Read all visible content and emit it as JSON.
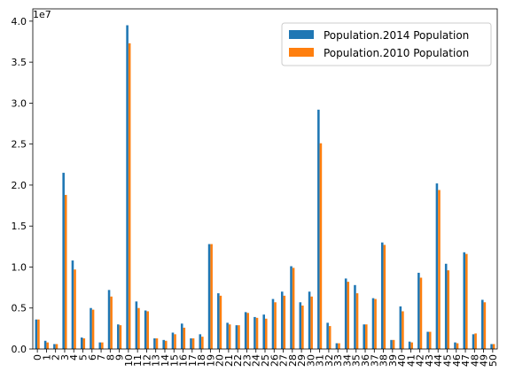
{
  "chart_data": {
    "type": "bar",
    "offset_label": "1e7",
    "categories": [
      "0",
      "1",
      "2",
      "3",
      "4",
      "5",
      "6",
      "7",
      "8",
      "9",
      "10",
      "11",
      "12",
      "13",
      "14",
      "15",
      "16",
      "17",
      "18",
      "19",
      "20",
      "21",
      "22",
      "23",
      "24",
      "25",
      "26",
      "27",
      "28",
      "29",
      "30",
      "31",
      "32",
      "33",
      "34",
      "35",
      "36",
      "37",
      "38",
      "39",
      "40",
      "41",
      "42",
      "43",
      "44",
      "45",
      "46",
      "47",
      "48",
      "49",
      "50"
    ],
    "ylim": [
      0,
      4.15
    ],
    "yticks": [
      0.0,
      0.5,
      1.0,
      1.5,
      2.0,
      2.5,
      3.0,
      3.5,
      4.0
    ],
    "ytick_labels": [
      "0.0",
      "0.5",
      "1.0",
      "1.5",
      "2.0",
      "2.5",
      "3.0",
      "3.5",
      "4.0"
    ],
    "legend_position": "top-right",
    "series": [
      {
        "name": "Population.2014 Population",
        "color": "#1f77b4",
        "values": [
          0.36,
          0.1,
          0.06,
          2.15,
          1.08,
          0.14,
          0.5,
          0.08,
          0.72,
          0.3,
          3.95,
          0.58,
          0.47,
          0.13,
          0.11,
          0.2,
          0.31,
          0.13,
          0.18,
          1.28,
          0.68,
          0.32,
          0.29,
          0.45,
          0.39,
          0.42,
          0.61,
          0.7,
          1.01,
          0.57,
          0.7,
          2.92,
          0.32,
          0.07,
          0.86,
          0.78,
          0.3,
          0.62,
          1.3,
          0.11,
          0.52,
          0.09,
          0.93,
          0.21,
          2.02,
          1.04,
          0.08,
          1.18,
          0.18,
          0.6,
          0.06
        ]
      },
      {
        "name": "Population.2010 Population",
        "color": "#ff7f0e",
        "values": [
          0.36,
          0.08,
          0.06,
          1.88,
          0.97,
          0.13,
          0.48,
          0.08,
          0.64,
          0.29,
          3.73,
          0.5,
          0.46,
          0.13,
          0.1,
          0.18,
          0.26,
          0.13,
          0.15,
          1.28,
          0.65,
          0.3,
          0.29,
          0.44,
          0.38,
          0.37,
          0.57,
          0.65,
          0.99,
          0.53,
          0.64,
          2.51,
          0.28,
          0.07,
          0.82,
          0.68,
          0.3,
          0.61,
          1.27,
          0.11,
          0.46,
          0.08,
          0.87,
          0.21,
          1.94,
          0.96,
          0.07,
          1.16,
          0.19,
          0.57,
          0.06
        ]
      }
    ]
  }
}
